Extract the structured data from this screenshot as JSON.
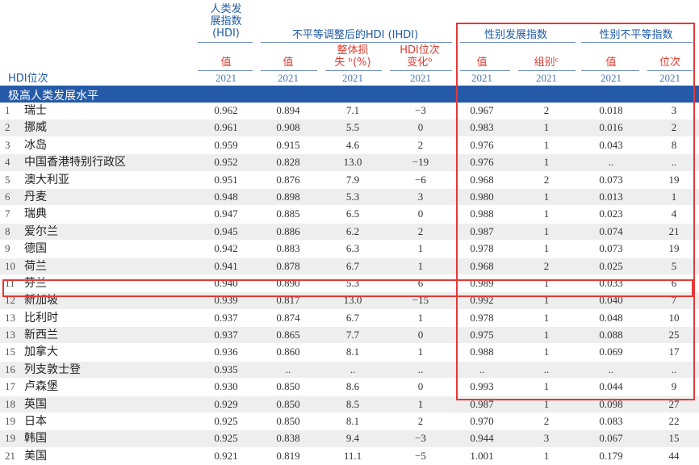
{
  "header": {
    "hdi_group": "人类发\n展指数\n(HDI)",
    "ihdi_group": "不平等调整后的HDI (IHDI)",
    "gdi_group": "性别发展指数",
    "gii_group": "性别不平等指数",
    "rank_label": "HDI位次",
    "col_hdi_value": "值",
    "col_ihdi_value": "值",
    "col_loss": "整体损\n失 ᵇ(%)",
    "col_rank_change": "HDI位次\n变化ᵇ",
    "col_gdi_value": "值",
    "col_gdi_group": "组别ᶜ",
    "col_gii_value": "值",
    "col_gii_rank": "位次",
    "year": "2021"
  },
  "section_label": "极高人类发展水平",
  "colors": {
    "accent_blue": "#245aa8",
    "highlight_red": "#e53935"
  },
  "rows": [
    {
      "rank": "1",
      "country": "瑞士",
      "hdi": "0.962",
      "ihdi": "0.894",
      "loss": "7.1",
      "change": "−3",
      "gdi": "0.967",
      "group": "2",
      "gii": "0.018",
      "gii_rank": "3"
    },
    {
      "rank": "2",
      "country": "挪威",
      "hdi": "0.961",
      "ihdi": "0.908",
      "loss": "5.5",
      "change": "0",
      "gdi": "0.983",
      "group": "1",
      "gii": "0.016",
      "gii_rank": "2"
    },
    {
      "rank": "3",
      "country": "冰岛",
      "hdi": "0.959",
      "ihdi": "0.915",
      "loss": "4.6",
      "change": "2",
      "gdi": "0.976",
      "group": "1",
      "gii": "0.043",
      "gii_rank": "8"
    },
    {
      "rank": "4",
      "country": "中国香港特别行政区",
      "hdi": "0.952",
      "ihdi": "0.828",
      "loss": "13.0",
      "change": "−19",
      "gdi": "0.976",
      "group": "1",
      "gii": "..",
      "gii_rank": ".."
    },
    {
      "rank": "5",
      "country": "澳大利亚",
      "hdi": "0.951",
      "ihdi": "0.876",
      "loss": "7.9",
      "change": "−6",
      "gdi": "0.968",
      "group": "2",
      "gii": "0.073",
      "gii_rank": "19"
    },
    {
      "rank": "6",
      "country": "丹麦",
      "hdi": "0.948",
      "ihdi": "0.898",
      "loss": "5.3",
      "change": "3",
      "gdi": "0.980",
      "group": "1",
      "gii": "0.013",
      "gii_rank": "1"
    },
    {
      "rank": "7",
      "country": "瑞典",
      "hdi": "0.947",
      "ihdi": "0.885",
      "loss": "6.5",
      "change": "0",
      "gdi": "0.988",
      "group": "1",
      "gii": "0.023",
      "gii_rank": "4"
    },
    {
      "rank": "8",
      "country": "爱尔兰",
      "hdi": "0.945",
      "ihdi": "0.886",
      "loss": "6.2",
      "change": "2",
      "gdi": "0.987",
      "group": "1",
      "gii": "0.074",
      "gii_rank": "21"
    },
    {
      "rank": "9",
      "country": "德国",
      "hdi": "0.942",
      "ihdi": "0.883",
      "loss": "6.3",
      "change": "1",
      "gdi": "0.978",
      "group": "1",
      "gii": "0.073",
      "gii_rank": "19"
    },
    {
      "rank": "10",
      "country": "荷兰",
      "hdi": "0.941",
      "ihdi": "0.878",
      "loss": "6.7",
      "change": "1",
      "gdi": "0.968",
      "group": "2",
      "gii": "0.025",
      "gii_rank": "5"
    },
    {
      "rank": "11",
      "country": "芬兰",
      "hdi": "0.940",
      "ihdi": "0.890",
      "loss": "5.3",
      "change": "6",
      "gdi": "0.989",
      "group": "1",
      "gii": "0.033",
      "gii_rank": "6"
    },
    {
      "rank": "12",
      "country": "新加坡",
      "hdi": "0.939",
      "ihdi": "0.817",
      "loss": "13.0",
      "change": "−15",
      "gdi": "0.992",
      "group": "1",
      "gii": "0.040",
      "gii_rank": "7"
    },
    {
      "rank": "13",
      "country": "比利时",
      "hdi": "0.937",
      "ihdi": "0.874",
      "loss": "6.7",
      "change": "1",
      "gdi": "0.978",
      "group": "1",
      "gii": "0.048",
      "gii_rank": "10"
    },
    {
      "rank": "13",
      "country": "新西兰",
      "hdi": "0.937",
      "ihdi": "0.865",
      "loss": "7.7",
      "change": "0",
      "gdi": "0.975",
      "group": "1",
      "gii": "0.088",
      "gii_rank": "25"
    },
    {
      "rank": "15",
      "country": "加拿大",
      "hdi": "0.936",
      "ihdi": "0.860",
      "loss": "8.1",
      "change": "1",
      "gdi": "0.988",
      "group": "1",
      "gii": "0.069",
      "gii_rank": "17"
    },
    {
      "rank": "16",
      "country": "列支敦士登",
      "hdi": "0.935",
      "ihdi": "..",
      "loss": "..",
      "change": "..",
      "gdi": "..",
      "group": "..",
      "gii": "..",
      "gii_rank": ".."
    },
    {
      "rank": "17",
      "country": "卢森堡",
      "hdi": "0.930",
      "ihdi": "0.850",
      "loss": "8.6",
      "change": "0",
      "gdi": "0.993",
      "group": "1",
      "gii": "0.044",
      "gii_rank": "9"
    },
    {
      "rank": "18",
      "country": "英国",
      "hdi": "0.929",
      "ihdi": "0.850",
      "loss": "8.5",
      "change": "1",
      "gdi": "0.987",
      "group": "1",
      "gii": "0.098",
      "gii_rank": "27"
    },
    {
      "rank": "19",
      "country": "日本",
      "hdi": "0.925",
      "ihdi": "0.850",
      "loss": "8.1",
      "change": "2",
      "gdi": "0.970",
      "group": "2",
      "gii": "0.083",
      "gii_rank": "22"
    },
    {
      "rank": "19",
      "country": "韩国",
      "hdi": "0.925",
      "ihdi": "0.838",
      "loss": "9.4",
      "change": "−3",
      "gdi": "0.944",
      "group": "3",
      "gii": "0.067",
      "gii_rank": "15"
    },
    {
      "rank": "21",
      "country": "美国",
      "hdi": "0.921",
      "ihdi": "0.819",
      "loss": "11.1",
      "change": "−5",
      "gdi": "1.001",
      "group": "1",
      "gii": "0.179",
      "gii_rank": "44"
    }
  ]
}
